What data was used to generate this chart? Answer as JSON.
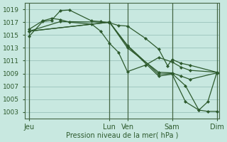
{
  "background_color": "#c8e8e0",
  "grid_color": "#a0c8c0",
  "line_color": "#2d5a2d",
  "marker_color": "#2d5a2d",
  "xlabel": "Pression niveau de la mer( hPa )",
  "ylim": [
    1002.0,
    1020.0
  ],
  "yticks": [
    1003,
    1005,
    1007,
    1009,
    1011,
    1013,
    1015,
    1017,
    1019
  ],
  "xtick_labels": [
    "Jeu",
    "Lun",
    "Ven",
    "Sam",
    "Dim"
  ],
  "xtick_positions": [
    0,
    9,
    11,
    16,
    21
  ],
  "vline_positions": [
    0,
    9,
    11,
    16,
    21
  ],
  "total_x": 21,
  "lines": [
    {
      "x": [
        0,
        1.5,
        2.5,
        3.5,
        4.5,
        7,
        8,
        9,
        10,
        11,
        13,
        14.5,
        15.5,
        16,
        17,
        18,
        21
      ],
      "y": [
        1014.8,
        1017.1,
        1017.3,
        1018.8,
        1018.9,
        1017.2,
        1017.1,
        1016.9,
        1016.5,
        1016.4,
        1014.5,
        1012.8,
        1010.2,
        1011.2,
        1010.6,
        1010.3,
        1009.2
      ],
      "has_markers": true
    },
    {
      "x": [
        0,
        1.5,
        2.5,
        3.5,
        4.5,
        7,
        8,
        9,
        10,
        11,
        13,
        14.5,
        16,
        17,
        18,
        21
      ],
      "y": [
        1015.9,
        1017.2,
        1017.6,
        1017.4,
        1017.0,
        1016.7,
        1015.6,
        1013.7,
        1012.3,
        1009.3,
        1010.3,
        1011.5,
        1010.8,
        1010.0,
        1009.5,
        1009.2
      ],
      "has_markers": true
    },
    {
      "x": [
        0,
        3.5,
        9,
        11,
        14.5,
        16,
        17,
        18,
        21
      ],
      "y": [
        1015.6,
        1017.1,
        1017.0,
        1013.0,
        1009.2,
        1009.1,
        1008.6,
        1008.1,
        1009.1
      ],
      "has_markers": true
    },
    {
      "x": [
        0,
        9,
        11,
        14.5,
        16,
        17.5,
        19,
        20,
        21
      ],
      "y": [
        1015.6,
        1017.0,
        1013.3,
        1008.6,
        1008.9,
        1004.6,
        1003.3,
        1003.1,
        1003.1
      ],
      "has_markers": true
    },
    {
      "x": [
        0,
        9,
        11,
        14.5,
        16,
        17.5,
        19,
        20,
        21
      ],
      "y": [
        1015.6,
        1017.0,
        1013.4,
        1008.9,
        1009.0,
        1007.1,
        1003.3,
        1004.6,
        1009.1
      ],
      "has_markers": true
    }
  ]
}
